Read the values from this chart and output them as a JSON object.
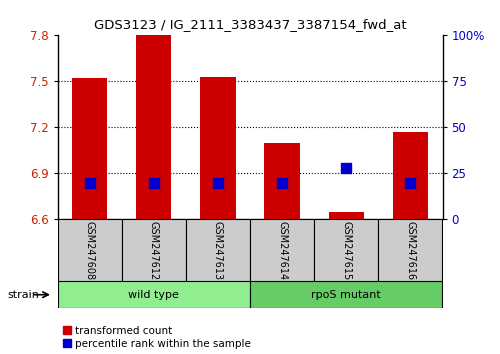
{
  "title": "GDS3123 / IG_2111_3383437_3387154_fwd_at",
  "samples": [
    "GSM247608",
    "GSM247612",
    "GSM247613",
    "GSM247614",
    "GSM247615",
    "GSM247616"
  ],
  "red_values": [
    7.52,
    7.8,
    7.53,
    7.1,
    6.65,
    7.17
  ],
  "blue_values_pct": [
    20,
    20,
    20,
    20,
    28,
    20
  ],
  "ylim_left": [
    6.6,
    7.8
  ],
  "ylim_right": [
    0,
    100
  ],
  "yticks_left": [
    6.6,
    6.9,
    7.2,
    7.5,
    7.8
  ],
  "yticks_right": [
    0,
    25,
    50,
    75,
    100
  ],
  "ytick_right_labels": [
    "0",
    "25",
    "50",
    "75",
    "100%"
  ],
  "groups": [
    {
      "label": "wild type",
      "samples": [
        0,
        1,
        2
      ],
      "color": "#90EE90"
    },
    {
      "label": "rpoS mutant",
      "samples": [
        3,
        4,
        5
      ],
      "color": "#66CC66"
    }
  ],
  "bar_color": "#CC0000",
  "dot_color": "#0000CC",
  "tick_label_color_left": "#CC2200",
  "tick_label_color_right": "#0000CC",
  "grid_color": "#000000",
  "sample_box_color": "#CCCCCC",
  "background_color": "#ffffff",
  "bar_width": 0.55,
  "dot_size": 55,
  "strain_label": "strain",
  "legend_items": [
    "transformed count",
    "percentile rank within the sample"
  ]
}
